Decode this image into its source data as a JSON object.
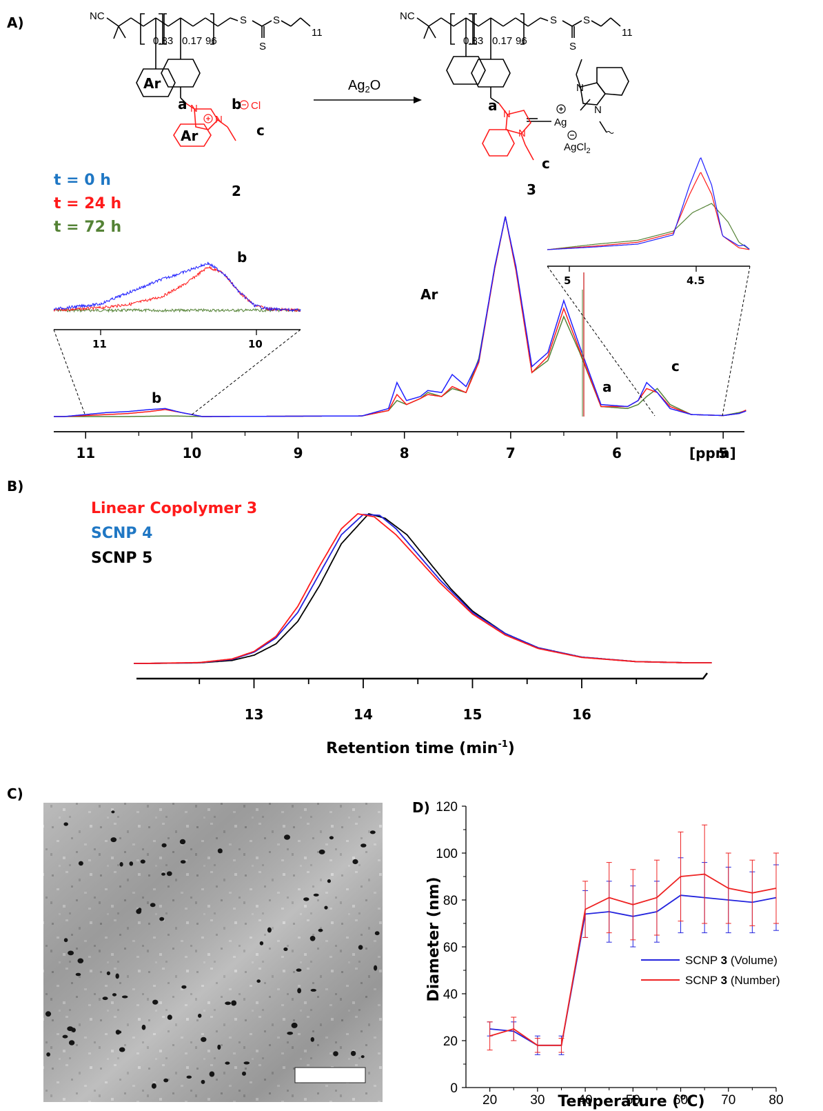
{
  "panels": {
    "a": "A)",
    "b": "B)",
    "c": "C)",
    "d": "D)"
  },
  "panel_a": {
    "reagent": "Ag",
    "reagent_sub": "2",
    "reagent_o": "O",
    "compound_2": "2",
    "compound_3": "3",
    "frac_1": "0.83",
    "frac_2": "0.17",
    "dp": "96",
    "chain_len": "11",
    "nc": "NC",
    "s": "S",
    "ar": "Ar",
    "cl": "Cl",
    "ag": "Ag",
    "agcl": "AgCl",
    "agcl_sub": "2",
    "n": "N",
    "labels": {
      "a": "a",
      "b": "b",
      "c": "c"
    },
    "legend": [
      {
        "text": "t = 0 h",
        "color": "#1f77c4"
      },
      {
        "text": "t = 24 h",
        "color": "#ff1a1a"
      },
      {
        "text": "t = 72 h",
        "color": "#548235"
      }
    ],
    "peak_labels": {
      "ar": "Ar",
      "b": "b",
      "a": "a",
      "c": "c"
    },
    "xaxis_unit": "[ppm]",
    "inset_left_ticks": [
      "11",
      "10"
    ],
    "inset_right_ticks": [
      "5",
      "4.5"
    ]
  },
  "panel_b": {
    "legend": [
      {
        "text": "Linear Copolymer 3",
        "color": "#ff1a1a"
      },
      {
        "text": "SCNP 4",
        "color": "#1f77c4"
      },
      {
        "text": "SCNP 5",
        "color": "#000000"
      }
    ]
  },
  "panel_d": {
    "legend": [
      {
        "prefix": "SCNP ",
        "bold": "3",
        "suffix": " (Volume)",
        "color": "#2222dd"
      },
      {
        "prefix": "SCNP ",
        "bold": "3",
        "suffix": " (Number)",
        "color": "#ee2222"
      }
    ]
  },
  "chart_data": [
    {
      "type": "line",
      "title": "",
      "xlabel": "[ppm]",
      "ylabel": "",
      "xlim": [
        11.3,
        4.8
      ],
      "xticks": [
        11,
        10,
        9,
        8,
        7,
        6,
        5
      ],
      "series": [
        {
          "name": "t = 0 h",
          "color": "#1f1fff",
          "x": [
            11.2,
            11.0,
            10.8,
            10.6,
            10.4,
            10.25,
            10.1,
            9.9,
            8.4,
            8.15,
            8.07,
            7.98,
            7.85,
            7.78,
            7.65,
            7.55,
            7.42,
            7.3,
            7.15,
            7.05,
            6.95,
            6.8,
            6.65,
            6.5,
            6.35,
            6.15,
            5.9,
            5.8,
            5.72,
            5.62,
            5.5,
            5.3,
            5.0,
            4.85,
            4.72,
            4.65,
            4.6,
            4.55,
            4.5,
            4.45,
            4.4,
            4.3
          ],
          "y": [
            0,
            0.01,
            0.02,
            0.025,
            0.035,
            0.04,
            0.02,
            0,
            0.003,
            0.04,
            0.17,
            0.08,
            0.1,
            0.13,
            0.12,
            0.21,
            0.15,
            0.28,
            0.75,
            1.0,
            0.75,
            0.25,
            0.32,
            0.58,
            0.35,
            0.06,
            0.05,
            0.08,
            0.17,
            0.12,
            0.04,
            0.01,
            0.005,
            0.015,
            0.04,
            0.08,
            0.3,
            0.36,
            0.16,
            0.04,
            0.01,
            0
          ]
        },
        {
          "name": "t = 24 h",
          "color": "#ff1a1a",
          "x": [
            11.2,
            11.0,
            10.8,
            10.6,
            10.4,
            10.25,
            10.1,
            9.9,
            8.4,
            8.15,
            8.07,
            7.98,
            7.85,
            7.78,
            7.65,
            7.55,
            7.42,
            7.3,
            7.15,
            7.05,
            6.95,
            6.8,
            6.65,
            6.5,
            6.35,
            6.15,
            5.9,
            5.8,
            5.72,
            5.62,
            5.5,
            5.3,
            5.0,
            4.85,
            4.72,
            4.65,
            4.6,
            4.55,
            4.5,
            4.45,
            4.4,
            4.3
          ],
          "y": [
            0,
            0.005,
            0.01,
            0.015,
            0.025,
            0.035,
            0.02,
            0,
            0.003,
            0.03,
            0.11,
            0.06,
            0.09,
            0.11,
            0.1,
            0.15,
            0.12,
            0.27,
            0.74,
            1.0,
            0.73,
            0.22,
            0.3,
            0.54,
            0.33,
            0.05,
            0.05,
            0.08,
            0.14,
            0.12,
            0.05,
            0.01,
            0.005,
            0.015,
            0.05,
            0.08,
            0.23,
            0.3,
            0.14,
            0.04,
            0.01,
            0
          ]
        },
        {
          "name": "t = 72 h",
          "color": "#548235",
          "x": [
            11.2,
            10.6,
            10.2,
            9.9,
            8.4,
            8.15,
            8.07,
            7.98,
            7.85,
            7.78,
            7.65,
            7.55,
            7.42,
            7.3,
            7.15,
            7.05,
            6.95,
            6.8,
            6.65,
            6.5,
            6.35,
            6.15,
            5.9,
            5.8,
            5.72,
            5.62,
            5.5,
            5.3,
            5.0,
            4.85,
            4.72,
            4.65,
            4.6,
            4.55,
            4.5,
            4.45,
            4.4,
            4.3
          ],
          "y": [
            0,
            0,
            0.003,
            0,
            0.003,
            0.03,
            0.08,
            0.06,
            0.09,
            0.12,
            0.1,
            0.14,
            0.12,
            0.29,
            0.74,
            1.0,
            0.74,
            0.22,
            0.28,
            0.5,
            0.32,
            0.05,
            0.04,
            0.06,
            0.1,
            0.14,
            0.06,
            0.01,
            0.005,
            0.02,
            0.04,
            0.06,
            0.1,
            0.16,
            0.15,
            0.06,
            0.015,
            0
          ]
        }
      ]
    },
    {
      "type": "line",
      "title": "",
      "xlabel": "Retention time (min",
      "xlabel_sup": "-1",
      "xlabel_end": ")",
      "ylabel": "",
      "xlim": [
        12.0,
        17.0
      ],
      "xticks": [
        13,
        14,
        15,
        16
      ],
      "series": [
        {
          "name": "Linear Copolymer 3",
          "color": "#ff1a1a",
          "x": [
            12.0,
            12.5,
            12.8,
            13.0,
            13.2,
            13.4,
            13.6,
            13.8,
            13.95,
            14.1,
            14.3,
            14.5,
            14.7,
            15.0,
            15.3,
            15.6,
            16.0,
            16.5,
            17.0
          ],
          "y": [
            0,
            0.006,
            0.03,
            0.08,
            0.18,
            0.38,
            0.65,
            0.9,
            1.0,
            0.98,
            0.86,
            0.7,
            0.54,
            0.33,
            0.19,
            0.1,
            0.04,
            0.012,
            0.004
          ]
        },
        {
          "name": "SCNP 4",
          "color": "#2222dd",
          "x": [
            12.0,
            12.5,
            12.8,
            13.0,
            13.2,
            13.4,
            13.6,
            13.8,
            14.0,
            14.15,
            14.3,
            14.5,
            14.7,
            15.0,
            15.3,
            15.6,
            16.0,
            16.5,
            17.0
          ],
          "y": [
            0,
            0.005,
            0.027,
            0.075,
            0.17,
            0.34,
            0.6,
            0.86,
            0.995,
            0.99,
            0.9,
            0.73,
            0.56,
            0.34,
            0.2,
            0.105,
            0.042,
            0.012,
            0.004
          ]
        },
        {
          "name": "SCNP 5",
          "color": "#000000",
          "x": [
            12.0,
            12.5,
            12.8,
            13.0,
            13.2,
            13.4,
            13.6,
            13.8,
            14.05,
            14.2,
            14.4,
            14.6,
            14.8,
            15.0,
            15.3,
            15.6,
            16.0,
            16.5,
            17.0
          ],
          "y": [
            0,
            0.004,
            0.02,
            0.055,
            0.13,
            0.28,
            0.52,
            0.8,
            1.0,
            0.97,
            0.86,
            0.68,
            0.5,
            0.35,
            0.2,
            0.105,
            0.042,
            0.012,
            0.004
          ]
        }
      ]
    },
    {
      "type": "line",
      "title": "",
      "xlabel": "Temperature (°C)",
      "ylabel": "Diameter (nm)",
      "xlim": [
        15,
        80
      ],
      "ylim": [
        0,
        120
      ],
      "xticks": [
        20,
        30,
        40,
        50,
        60,
        70,
        80
      ],
      "yticks": [
        0,
        20,
        40,
        60,
        80,
        100,
        120
      ],
      "x": [
        20,
        25,
        30,
        35,
        40,
        45,
        50,
        55,
        60,
        65,
        70,
        75,
        80
      ],
      "series": [
        {
          "name": "SCNP 3 (Volume)",
          "color": "#2222dd",
          "values": [
            25,
            24,
            18,
            18,
            74,
            75,
            73,
            75,
            82,
            81,
            80,
            79,
            81
          ],
          "errors": [
            3,
            4,
            4,
            4,
            10,
            13,
            13,
            13,
            16,
            15,
            14,
            13,
            14
          ]
        },
        {
          "name": "SCNP 3 (Number)",
          "color": "#ee2222",
          "values": [
            22,
            25,
            18,
            18,
            76,
            81,
            78,
            81,
            90,
            91,
            85,
            83,
            85
          ],
          "errors": [
            6,
            5,
            3,
            3,
            12,
            15,
            15,
            16,
            19,
            21,
            15,
            14,
            15
          ]
        }
      ]
    }
  ]
}
